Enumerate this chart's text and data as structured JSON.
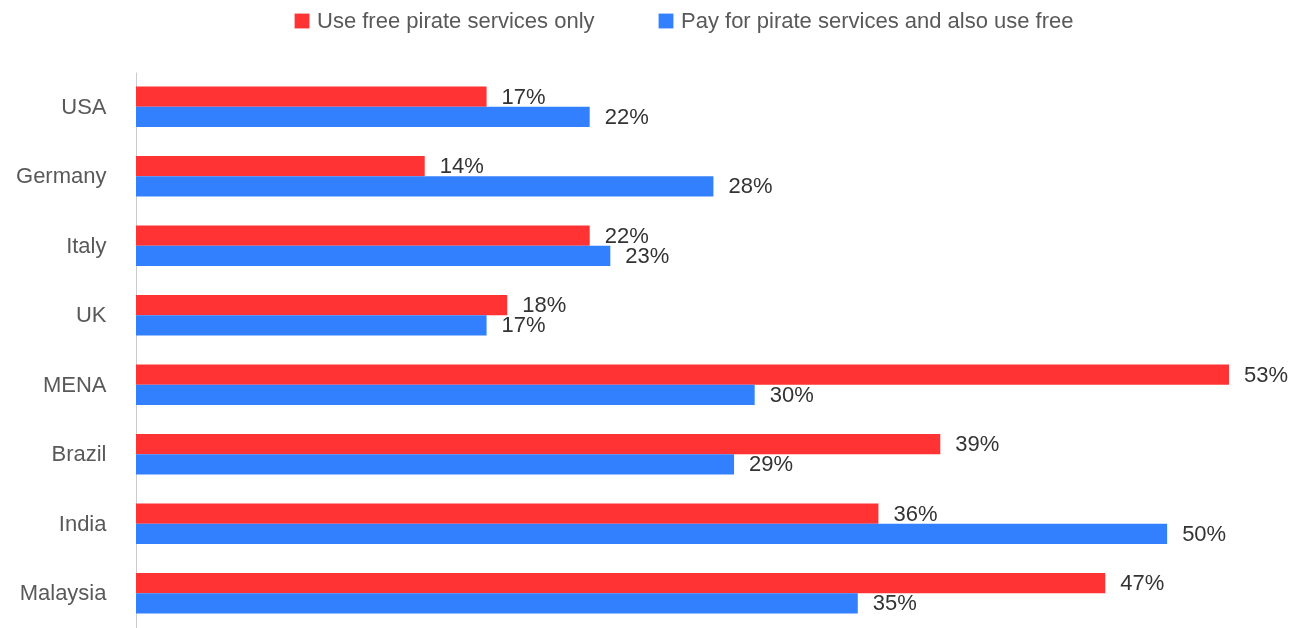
{
  "chart_data": {
    "type": "bar",
    "orientation": "horizontal",
    "categories": [
      "USA",
      "Germany",
      "Italy",
      "UK",
      "MENA",
      "Brazil",
      "India",
      "Malaysia"
    ],
    "series": [
      {
        "name": "Use free pirate services only",
        "color": "#ff3333",
        "values": [
          17,
          14,
          22,
          18,
          53,
          39,
          36,
          47
        ],
        "value_labels": [
          "17%",
          "14%",
          "22%",
          "18%",
          "53%",
          "39%",
          "36%",
          "47%"
        ]
      },
      {
        "name": "Pay for pirate services and also use free",
        "color": "#3380ff",
        "values": [
          22,
          28,
          23,
          17,
          30,
          29,
          50,
          35
        ],
        "value_labels": [
          "22%",
          "28%",
          "23%",
          "17%",
          "30%",
          "29%",
          "50%",
          "35%"
        ]
      }
    ],
    "legend": "top",
    "tick_labels": "y"
  }
}
